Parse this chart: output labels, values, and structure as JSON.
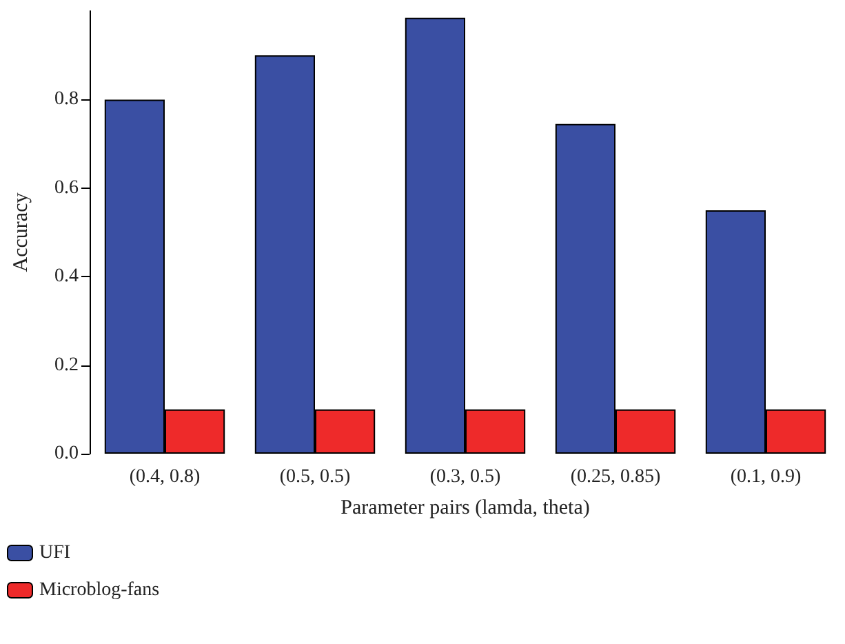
{
  "chart_data": {
    "type": "bar",
    "xlabel": "Parameter pairs (lamda, theta)",
    "ylabel": "Accuracy",
    "categories": [
      "(0.4, 0.8)",
      "(0.5, 0.5)",
      "(0.3, 0.5)",
      "(0.25, 0.85)",
      "(0.1, 0.9)"
    ],
    "series": [
      {
        "name": "UFI",
        "color": "#3a4fa3",
        "values": [
          0.8,
          0.9,
          0.985,
          0.745,
          0.55
        ]
      },
      {
        "name": "Microblog-fans",
        "color": "#ee2a2a",
        "values": [
          0.1,
          0.1,
          0.1,
          0.1,
          0.1
        ]
      }
    ],
    "ylim": [
      0,
      1
    ],
    "yticks": [
      {
        "value": 0,
        "label": "0.0"
      },
      0.2,
      0.4,
      0.6,
      0.8
    ],
    "grid": false,
    "legend": "bottom left"
  }
}
